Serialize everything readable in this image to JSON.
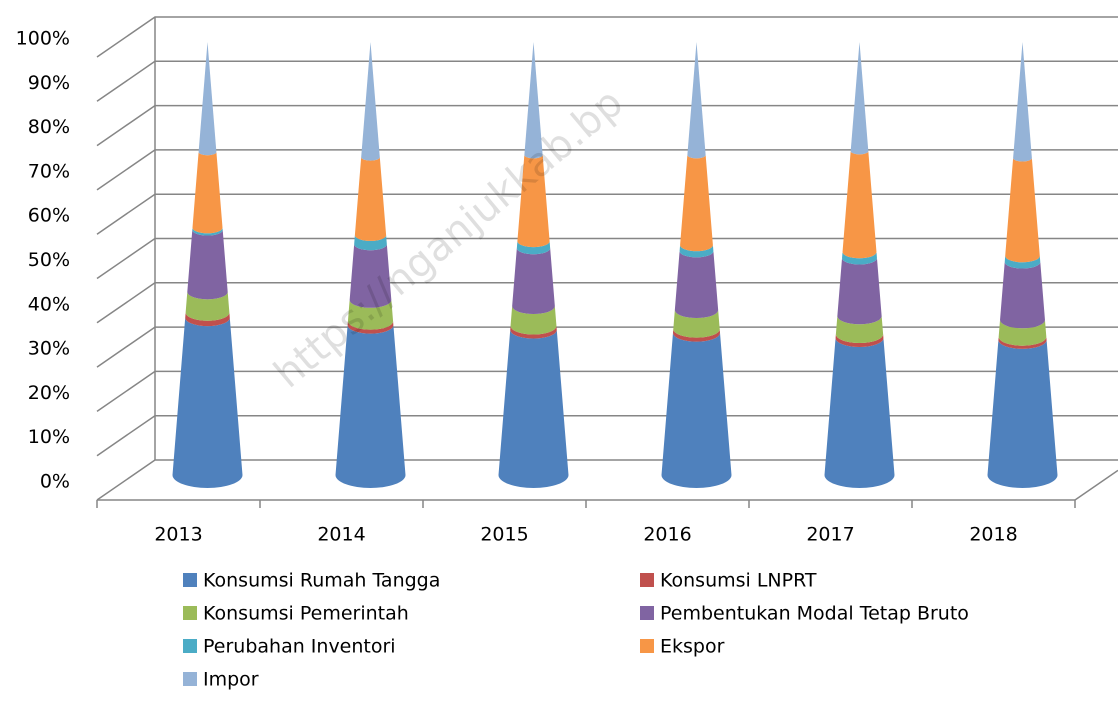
{
  "chart_data": {
    "type": "cone",
    "watermark": "https://nganjukkab.bp",
    "categories": [
      "2013",
      "2014",
      "2015",
      "2016",
      "2017",
      "2018"
    ],
    "series": [
      {
        "name": "Konsumsi Rumah Tangga",
        "color": "#4f81bd",
        "values": [
          36.3,
          34.6,
          33.5,
          32.8,
          31.6,
          31.2
        ]
      },
      {
        "name": "Konsumsi LNPRT",
        "color": "#c0504d",
        "values": [
          1.2,
          0.9,
          0.9,
          0.9,
          0.9,
          0.7
        ]
      },
      {
        "name": "Konsumsi Pemerintah",
        "color": "#9bbb59",
        "values": [
          4.8,
          4.9,
          4.6,
          4.4,
          4.2,
          3.9
        ]
      },
      {
        "name": "Pembentukan Modal Tetap Bruto",
        "color": "#8064a2",
        "values": [
          14.3,
          12.9,
          13.4,
          13.6,
          13.4,
          13.4
        ]
      },
      {
        "name": "Perubahan Inventori",
        "color": "#4bacc6",
        "values": [
          0.5,
          2.1,
          1.6,
          1.4,
          1.4,
          1.4
        ]
      },
      {
        "name": "Ekspor",
        "color": "#f79646",
        "values": [
          17.5,
          18.0,
          19.9,
          20.8,
          23.3,
          22.6
        ]
      },
      {
        "name": "Impor",
        "color": "#95b3d7",
        "values": [
          25.4,
          26.6,
          26.1,
          26.1,
          25.2,
          26.8
        ]
      }
    ],
    "ylim": [
      0,
      100
    ],
    "yticks": [
      {
        "value": 0,
        "label": "0%"
      },
      {
        "value": 10,
        "label": "10%"
      },
      {
        "value": 20,
        "label": "20%"
      },
      {
        "value": 30,
        "label": "30%"
      },
      {
        "value": 40,
        "label": "40%"
      },
      {
        "value": 50,
        "label": "50%"
      },
      {
        "value": 60,
        "label": "60%"
      },
      {
        "value": 70,
        "label": "70%"
      },
      {
        "value": 80,
        "label": "80%"
      },
      {
        "value": 90,
        "label": "90%"
      },
      {
        "value": 100,
        "label": "100%"
      }
    ],
    "grid": true,
    "legend": "bottom"
  }
}
